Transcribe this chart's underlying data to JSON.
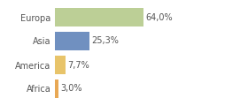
{
  "categories": [
    "Europa",
    "Asia",
    "America",
    "Africa"
  ],
  "values": [
    64.0,
    25.3,
    7.7,
    3.0
  ],
  "labels": [
    "64,0%",
    "25,3%",
    "7,7%",
    "3,0%"
  ],
  "bar_colors": [
    "#bccf96",
    "#7090c0",
    "#e8c46a",
    "#e8a855"
  ],
  "background_color": "#ffffff",
  "xlim": [
    0,
    100
  ],
  "bar_height": 0.75,
  "label_fontsize": 7,
  "tick_fontsize": 7
}
